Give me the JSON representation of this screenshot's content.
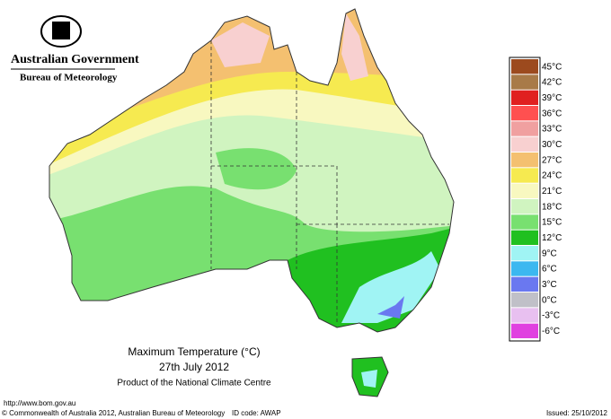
{
  "header": {
    "government": "Australian Government",
    "bureau": "Bureau of Meteorology"
  },
  "legend": {
    "items": [
      {
        "label": "45°C",
        "color": "#9c4a1e"
      },
      {
        "label": "42°C",
        "color": "#a87a48"
      },
      {
        "label": "39°C",
        "color": "#e02020"
      },
      {
        "label": "36°C",
        "color": "#ff5050"
      },
      {
        "label": "33°C",
        "color": "#f0a0a0"
      },
      {
        "label": "30°C",
        "color": "#f8d0d0"
      },
      {
        "label": "27°C",
        "color": "#f4c070"
      },
      {
        "label": "24°C",
        "color": "#f6ea50"
      },
      {
        "label": "21°C",
        "color": "#f8f8c0"
      },
      {
        "label": "18°C",
        "color": "#d0f4c0"
      },
      {
        "label": "15°C",
        "color": "#78e070"
      },
      {
        "label": "12°C",
        "color": "#20c020"
      },
      {
        "label": "9°C",
        "color": "#a0f4f4"
      },
      {
        "label": "6°C",
        "color": "#3cb8f0"
      },
      {
        "label": "3°C",
        "color": "#6a78f0"
      },
      {
        "label": "0°C",
        "color": "#c0c0c8"
      },
      {
        "label": "-3°C",
        "color": "#e8c0f0"
      },
      {
        "label": "-6°C",
        "color": "#e040e0"
      }
    ]
  },
  "caption": {
    "title": "Maximum Temperature (°C)",
    "date": "27th July 2012",
    "product": "Product of the National Climate Centre"
  },
  "footer": {
    "url": "http://www.bom.gov.au",
    "copyright": "© Commonwealth of Australia 2012, Australian Bureau of Meteorology",
    "id_code": "ID code: AWAP",
    "issued": "Issued: 25/10/2012"
  }
}
